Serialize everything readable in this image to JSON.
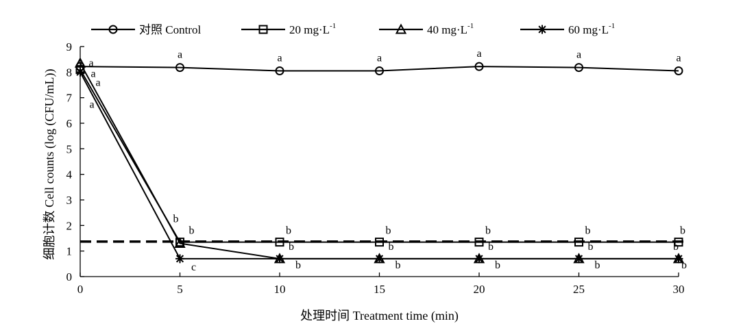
{
  "chart_data": {
    "type": "line",
    "xlabel": "处理时间 Treatment time (min)",
    "ylabel": "细胞计数 Cell counts (log (CFU/mL))",
    "xlim": [
      0,
      30
    ],
    "ylim": [
      0,
      9
    ],
    "xticks": [
      0,
      5,
      10,
      15,
      20,
      25,
      30
    ],
    "yticks": [
      0,
      1,
      2,
      3,
      4,
      5,
      6,
      7,
      8,
      9
    ],
    "legend_position": "top",
    "reference_line": {
      "y": 1.37,
      "style": "dashed"
    },
    "series": [
      {
        "name": "对照 Control",
        "marker": "circle",
        "x": [
          0,
          5,
          10,
          15,
          20,
          25,
          30
        ],
        "y": [
          8.22,
          8.18,
          8.05,
          8.05,
          8.22,
          8.18,
          8.05
        ],
        "labels": [
          "a",
          "a",
          "a",
          "a",
          "a",
          "a",
          "a"
        ]
      },
      {
        "name": "20 mg·L",
        "name_sup": "-1",
        "marker": "square",
        "x": [
          0,
          5,
          10,
          15,
          20,
          25,
          30
        ],
        "y": [
          8.1,
          1.35,
          1.35,
          1.35,
          1.35,
          1.35,
          1.35
        ],
        "labels": [
          "a",
          "b",
          "b",
          "b",
          "b",
          "b",
          "b"
        ]
      },
      {
        "name": "40  mg·L",
        "name_sup": "-1",
        "marker": "triangle",
        "x": [
          0,
          5,
          10,
          15,
          20,
          25,
          30
        ],
        "y": [
          8.35,
          1.3,
          0.7,
          0.7,
          0.7,
          0.7,
          0.7
        ],
        "labels": [
          "a",
          "b",
          "b",
          "b",
          "b",
          "b",
          "b"
        ]
      },
      {
        "name": "60  mg·L",
        "name_sup": "-1",
        "marker": "asterisk",
        "x": [
          0,
          5,
          10,
          15,
          20,
          25,
          30
        ],
        "y": [
          8.0,
          0.7,
          0.7,
          0.7,
          0.7,
          0.7,
          0.7
        ],
        "labels": [
          "a",
          "c",
          "b",
          "b",
          "b",
          "b",
          "b"
        ]
      }
    ]
  }
}
